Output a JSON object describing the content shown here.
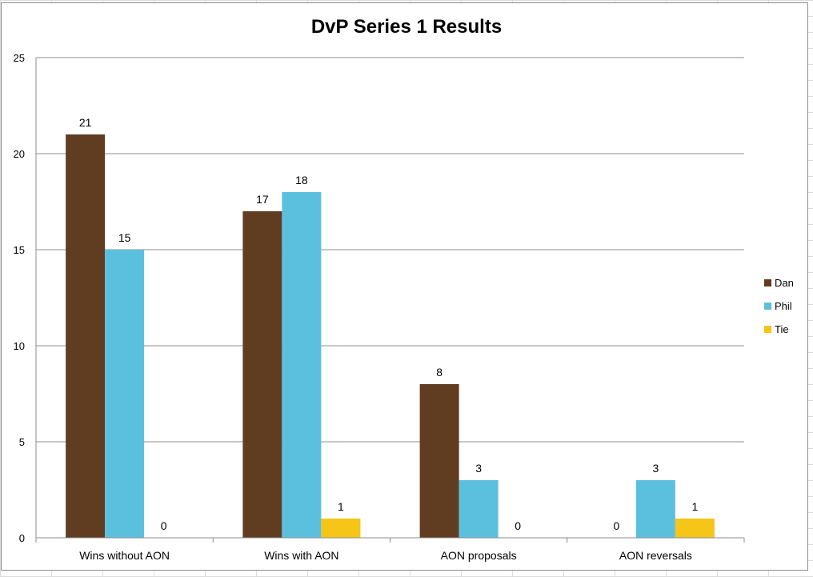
{
  "chart_data": {
    "type": "bar",
    "title": "DvP Series 1 Results",
    "categories": [
      "Wins without AON",
      "Wins with AON",
      "AON proposals",
      "AON reversals"
    ],
    "series": [
      {
        "name": "Dan",
        "color": "#603c20",
        "values": [
          21,
          17,
          8,
          0
        ]
      },
      {
        "name": "Phil",
        "color": "#5bc0de",
        "values": [
          15,
          18,
          3,
          3
        ]
      },
      {
        "name": "Tie",
        "color": "#f5c518",
        "values": [
          0,
          1,
          0,
          1
        ]
      }
    ],
    "xlabel": "",
    "ylabel": "",
    "ylim": [
      0,
      25
    ],
    "yticks": [
      0,
      5,
      10,
      15,
      20,
      25
    ],
    "grid": true,
    "legend": "right"
  }
}
